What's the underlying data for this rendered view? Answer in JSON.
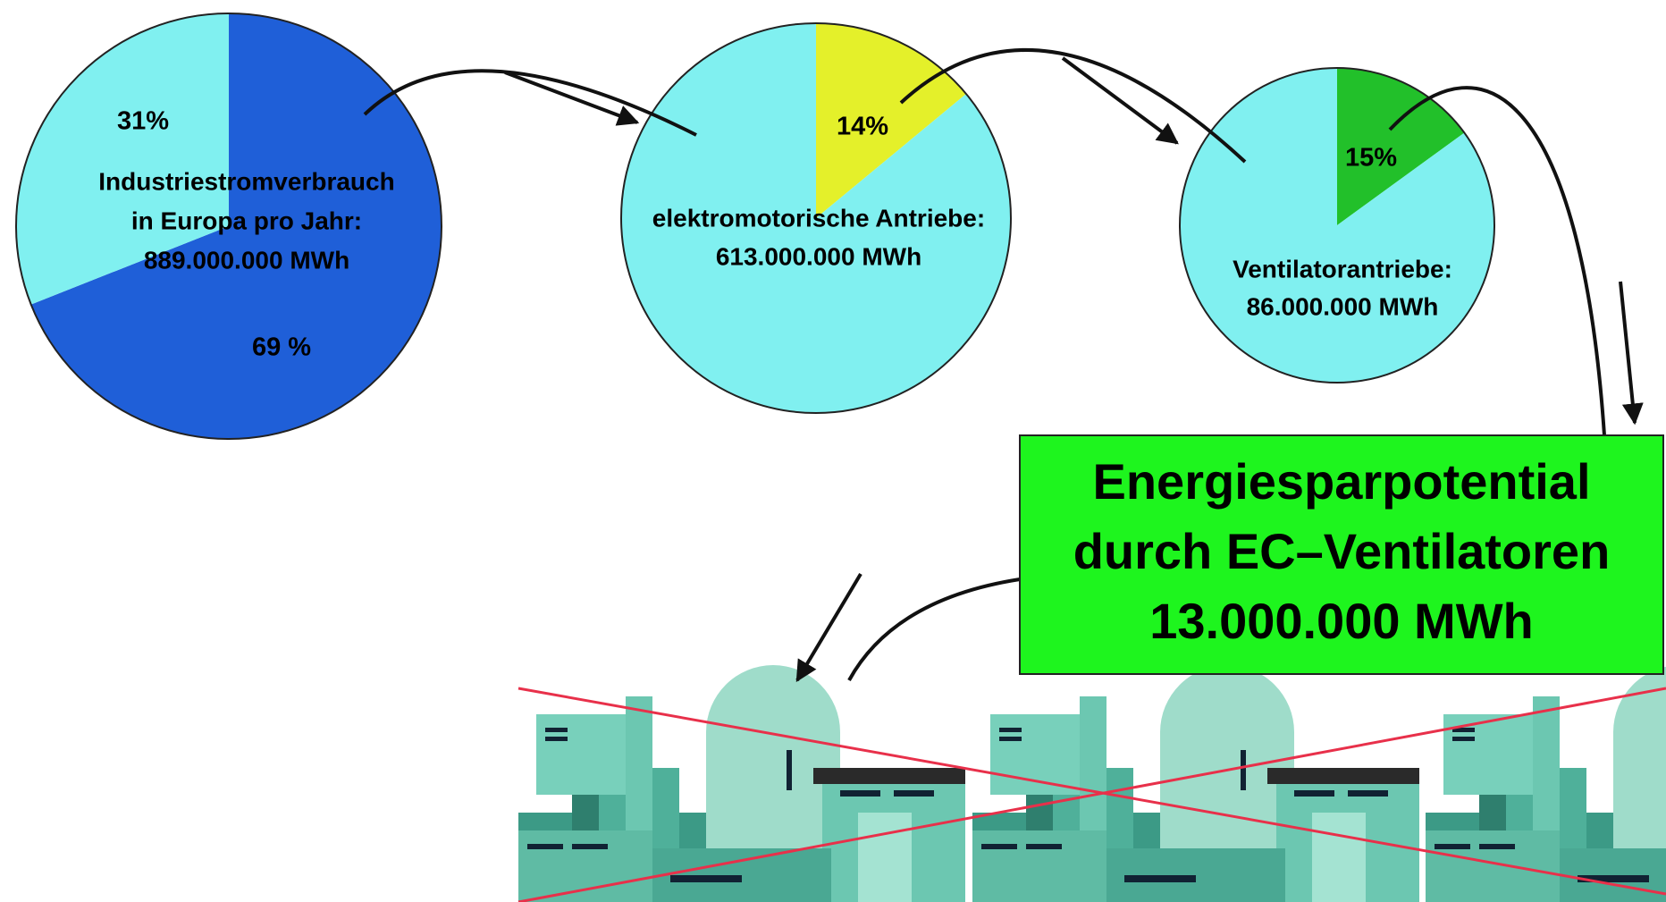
{
  "chart_data": [
    {
      "type": "pie",
      "title": [
        "Industriestromverbrauch",
        "in Europa pro Jahr:",
        "889.000.000 MWh"
      ],
      "values": [
        69,
        31
      ],
      "value_labels": [
        "69 %",
        "31%"
      ],
      "colors": [
        "#1f5fd8",
        "#80f0f0"
      ]
    },
    {
      "type": "pie",
      "title": [
        "elektromotorische Antriebe:",
        "613.000.000 MWh"
      ],
      "values": [
        14,
        86
      ],
      "value_labels": [
        "14%",
        null
      ],
      "colors": [
        "#e4f02a",
        "#80f0f0"
      ]
    },
    {
      "type": "pie",
      "title": [
        "Ventilatorantriebe:",
        "86.000.000 MWh"
      ],
      "values": [
        15,
        85
      ],
      "value_labels": [
        "15%",
        null
      ],
      "colors": [
        "#22c02a",
        "#80f0f0"
      ]
    }
  ],
  "callout": [
    "Energiesparpotential",
    "durch EC–Ventilatoren",
    "13.000.000 MWh"
  ]
}
